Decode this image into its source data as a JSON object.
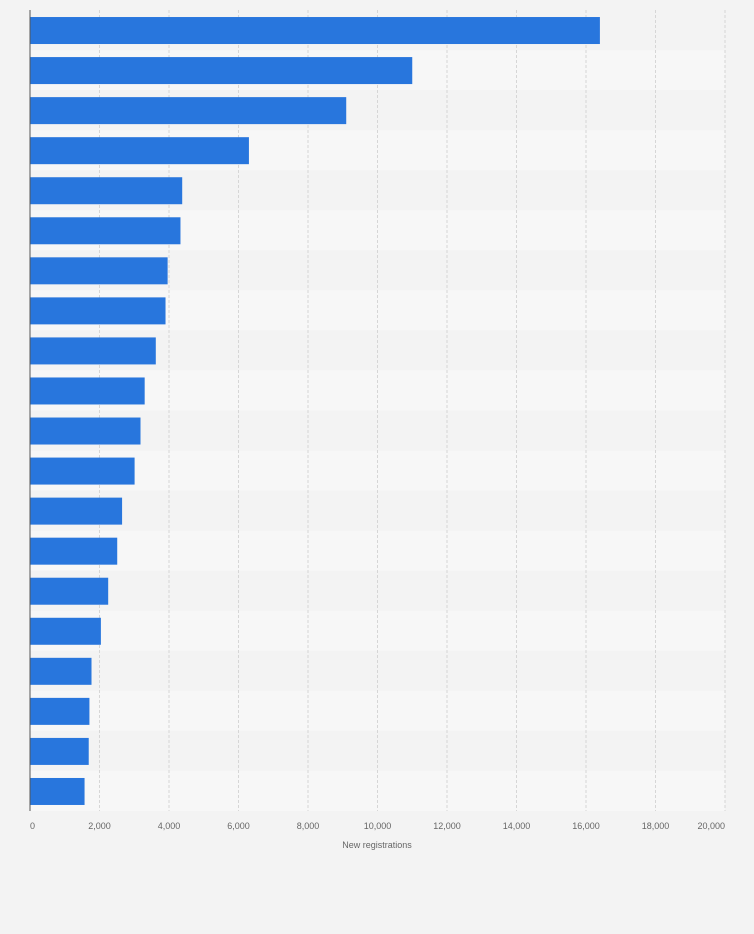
{
  "chart_data": {
    "type": "bar",
    "orientation": "horizontal",
    "title": "",
    "xlabel": "New registrations",
    "ylabel": "",
    "xlim": [
      0,
      20000
    ],
    "ticks": [
      0,
      2000,
      4000,
      6000,
      8000,
      10000,
      12000,
      14000,
      16000,
      18000,
      20000
    ],
    "tick_labels": [
      "0",
      "2,000",
      "4,000",
      "6,000",
      "8,000",
      "10,000",
      "12,000",
      "14,000",
      "16,000",
      "18,000",
      "20,000"
    ],
    "values": [
      16400,
      11000,
      9100,
      6300,
      4380,
      4330,
      3960,
      3900,
      3620,
      3300,
      3180,
      3010,
      2650,
      2510,
      2250,
      2040,
      1770,
      1710,
      1690,
      1570
    ],
    "grid": true,
    "bar_color": "#2876dd",
    "band_colors": [
      "#f3f3f3",
      "#f7f7f7"
    ]
  }
}
